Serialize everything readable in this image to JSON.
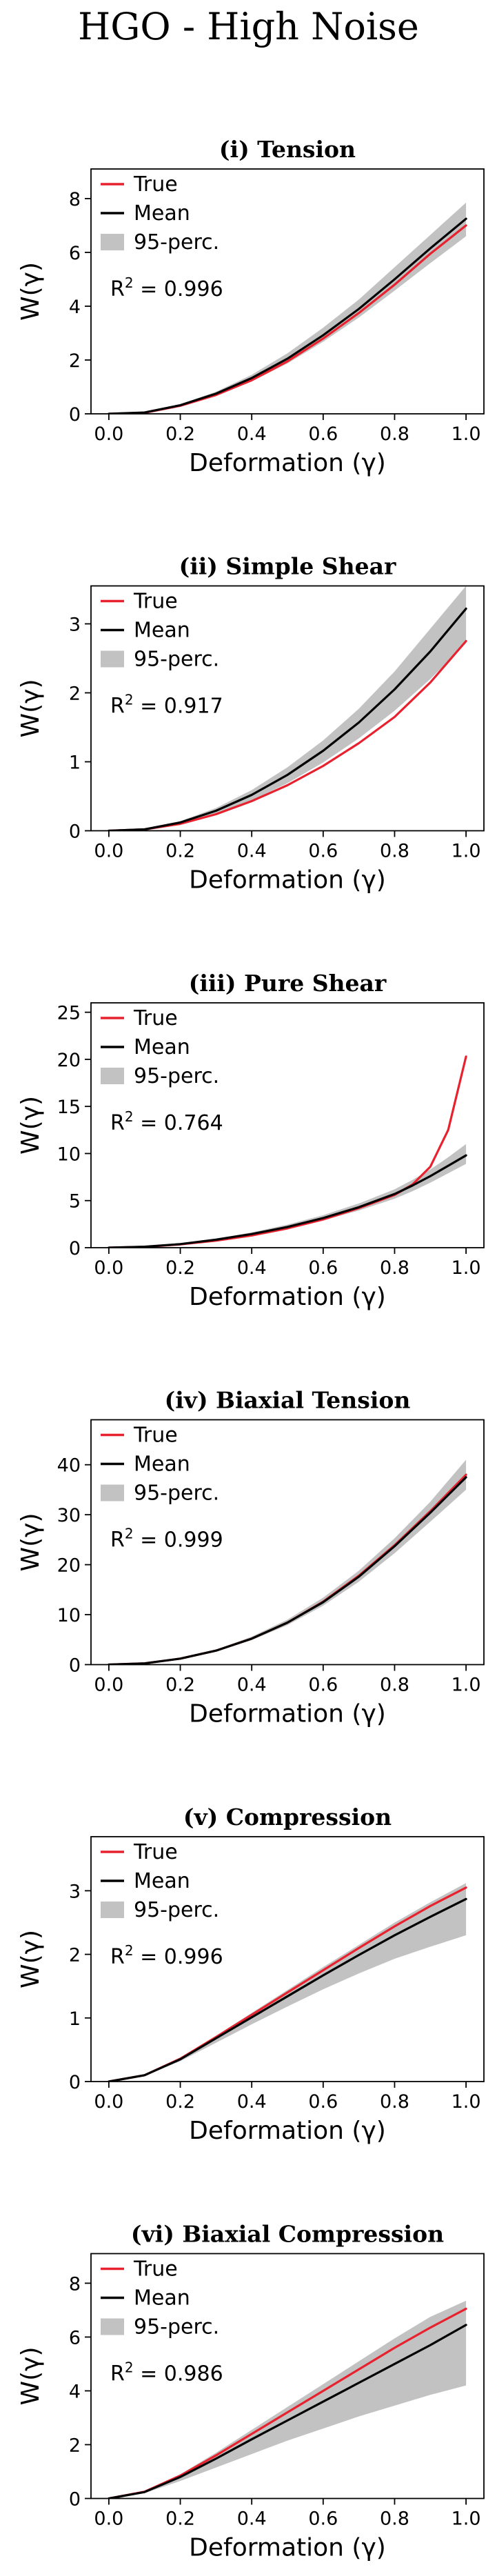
{
  "figure_title": "HGO - High Noise",
  "colors": {
    "true": "#e8212e",
    "mean": "#000000",
    "band": "#c2c2c2"
  },
  "chart_data": [
    {
      "type": "line",
      "title": "(i) Tension",
      "xlabel": "Deformation (γ)",
      "ylabel": "W(γ)",
      "xlim": [
        -0.05,
        1.05
      ],
      "ylim": [
        0,
        9.1
      ],
      "xticks": [
        0.0,
        0.2,
        0.4,
        0.6,
        0.8,
        1.0
      ],
      "xtick_labels": [
        "0.0",
        "0.2",
        "0.4",
        "0.6",
        "0.8",
        "1.0"
      ],
      "yticks": [
        0,
        2,
        4,
        6,
        8
      ],
      "ytick_labels": [
        "0",
        "2",
        "4",
        "6",
        "8"
      ],
      "legend": [
        "True",
        "Mean",
        "95-perc."
      ],
      "r2_label": "R",
      "r2_exp": "2",
      "r2_value": " = 0.996",
      "x": [
        0.0,
        0.1,
        0.2,
        0.3,
        0.4,
        0.5,
        0.6,
        0.7,
        0.8,
        0.9,
        1.0
      ],
      "series": [
        {
          "name": "True",
          "values": [
            0.0,
            0.04,
            0.3,
            0.7,
            1.25,
            1.95,
            2.8,
            3.75,
            4.8,
            5.95,
            7.0
          ]
        },
        {
          "name": "Mean",
          "values": [
            0.0,
            0.05,
            0.32,
            0.75,
            1.33,
            2.05,
            2.92,
            3.9,
            5.0,
            6.15,
            7.25
          ]
        }
      ],
      "band": {
        "name": "95-perc.",
        "lower": [
          0.0,
          0.04,
          0.28,
          0.68,
          1.2,
          1.87,
          2.68,
          3.58,
          4.58,
          5.6,
          6.6
        ],
        "upper": [
          0.0,
          0.06,
          0.36,
          0.82,
          1.45,
          2.25,
          3.2,
          4.25,
          5.45,
          6.65,
          7.85
        ]
      }
    },
    {
      "type": "line",
      "title": "(ii) Simple Shear",
      "xlabel": "Deformation (γ)",
      "ylabel": "W(γ)",
      "xlim": [
        -0.05,
        1.05
      ],
      "ylim": [
        0,
        3.55
      ],
      "xticks": [
        0.0,
        0.2,
        0.4,
        0.6,
        0.8,
        1.0
      ],
      "xtick_labels": [
        "0.0",
        "0.2",
        "0.4",
        "0.6",
        "0.8",
        "1.0"
      ],
      "yticks": [
        0,
        1,
        2,
        3
      ],
      "ytick_labels": [
        "0",
        "1",
        "2",
        "3"
      ],
      "legend": [
        "True",
        "Mean",
        "95-perc."
      ],
      "r2_label": "R",
      "r2_exp": "2",
      "r2_value": " = 0.917",
      "x": [
        0.0,
        0.1,
        0.2,
        0.3,
        0.4,
        0.5,
        0.6,
        0.7,
        0.8,
        0.9,
        1.0
      ],
      "series": [
        {
          "name": "True",
          "values": [
            0.0,
            0.02,
            0.1,
            0.24,
            0.43,
            0.66,
            0.94,
            1.27,
            1.65,
            2.15,
            2.75
          ]
        },
        {
          "name": "Mean",
          "values": [
            0.0,
            0.02,
            0.12,
            0.29,
            0.52,
            0.81,
            1.16,
            1.57,
            2.05,
            2.6,
            3.22
          ]
        }
      ],
      "band": {
        "name": "95-perc.",
        "lower": [
          0.0,
          0.02,
          0.1,
          0.24,
          0.44,
          0.69,
          0.99,
          1.34,
          1.74,
          2.2,
          2.72
        ],
        "upper": [
          0.0,
          0.03,
          0.14,
          0.33,
          0.59,
          0.92,
          1.31,
          1.77,
          2.31,
          2.93,
          3.55
        ]
      }
    },
    {
      "type": "line",
      "title": "(iii) Pure Shear",
      "xlabel": "Deformation (γ)",
      "ylabel": "W(γ)",
      "xlim": [
        -0.05,
        1.05
      ],
      "ylim": [
        0,
        26
      ],
      "xticks": [
        0.0,
        0.2,
        0.4,
        0.6,
        0.8,
        1.0
      ],
      "xtick_labels": [
        "0.0",
        "0.2",
        "0.4",
        "0.6",
        "0.8",
        "1.0"
      ],
      "yticks": [
        0,
        5,
        10,
        15,
        20,
        25
      ],
      "ytick_labels": [
        "0",
        "5",
        "10",
        "15",
        "20",
        "25"
      ],
      "legend": [
        "True",
        "Mean",
        "95-perc."
      ],
      "r2_label": "R",
      "r2_exp": "2",
      "r2_value": " = 0.764",
      "x": [
        0.0,
        0.1,
        0.2,
        0.3,
        0.4,
        0.5,
        0.6,
        0.7,
        0.8,
        0.85,
        0.9,
        0.95,
        1.0
      ],
      "series": [
        {
          "name": "True",
          "values": [
            0.0,
            0.08,
            0.35,
            0.75,
            1.3,
            2.05,
            3.0,
            4.2,
            5.6,
            6.7,
            8.6,
            12.5,
            20.3
          ]
        },
        {
          "name": "Mean",
          "values": [
            0.0,
            0.1,
            0.38,
            0.85,
            1.45,
            2.2,
            3.15,
            4.3,
            5.7,
            6.6,
            7.6,
            8.7,
            9.8
          ]
        }
      ],
      "band": {
        "name": "95-perc.",
        "lower": [
          0.0,
          0.08,
          0.33,
          0.75,
          1.3,
          2.0,
          2.9,
          3.95,
          5.2,
          6.0,
          6.9,
          7.9,
          8.9
        ],
        "upper": [
          0.0,
          0.12,
          0.43,
          0.95,
          1.62,
          2.45,
          3.45,
          4.7,
          6.2,
          7.2,
          8.3,
          9.6,
          11.0
        ]
      }
    },
    {
      "type": "line",
      "title": "(iv) Biaxial Tension",
      "xlabel": "Deformation (γ)",
      "ylabel": "W(γ)",
      "xlim": [
        -0.05,
        1.05
      ],
      "ylim": [
        0,
        49
      ],
      "xticks": [
        0.0,
        0.2,
        0.4,
        0.6,
        0.8,
        1.0
      ],
      "xtick_labels": [
        "0.0",
        "0.2",
        "0.4",
        "0.6",
        "0.8",
        "1.0"
      ],
      "yticks": [
        0,
        10,
        20,
        30,
        40
      ],
      "ytick_labels": [
        "0",
        "10",
        "20",
        "30",
        "40"
      ],
      "legend": [
        "True",
        "Mean",
        "95-perc."
      ],
      "r2_label": "R",
      "r2_exp": "2",
      "r2_value": " = 0.999",
      "x": [
        0.0,
        0.1,
        0.2,
        0.3,
        0.4,
        0.5,
        0.6,
        0.7,
        0.8,
        0.9,
        1.0
      ],
      "series": [
        {
          "name": "True",
          "values": [
            0.0,
            0.25,
            1.2,
            2.8,
            5.2,
            8.4,
            12.6,
            17.8,
            23.9,
            30.7,
            38.0
          ]
        },
        {
          "name": "Mean",
          "values": [
            0.0,
            0.25,
            1.2,
            2.8,
            5.2,
            8.4,
            12.5,
            17.6,
            23.7,
            30.4,
            37.5
          ]
        }
      ],
      "band": {
        "name": "95-perc.",
        "lower": [
          0.0,
          0.24,
          1.1,
          2.6,
          4.9,
          7.9,
          11.8,
          16.6,
          22.3,
          28.6,
          35.0
        ],
        "upper": [
          0.0,
          0.27,
          1.3,
          3.0,
          5.6,
          9.0,
          13.4,
          18.8,
          25.3,
          32.6,
          41.0
        ]
      }
    },
    {
      "type": "line",
      "title": "(v) Compression",
      "xlabel": "Deformation (γ)",
      "ylabel": "W(γ)",
      "xlim": [
        -0.05,
        1.05
      ],
      "ylim": [
        0,
        3.85
      ],
      "xticks": [
        0.0,
        0.2,
        0.4,
        0.6,
        0.8,
        1.0
      ],
      "xtick_labels": [
        "0.0",
        "0.2",
        "0.4",
        "0.6",
        "0.8",
        "1.0"
      ],
      "yticks": [
        0,
        1,
        2,
        3
      ],
      "ytick_labels": [
        "0",
        "1",
        "2",
        "3"
      ],
      "legend": [
        "True",
        "Mean",
        "95-perc."
      ],
      "r2_label": "R",
      "r2_exp": "2",
      "r2_value": " = 0.996",
      "x": [
        0.0,
        0.1,
        0.2,
        0.3,
        0.4,
        0.5,
        0.6,
        0.7,
        0.8,
        0.9,
        1.0
      ],
      "series": [
        {
          "name": "True",
          "values": [
            0.0,
            0.1,
            0.36,
            0.7,
            1.05,
            1.4,
            1.75,
            2.1,
            2.44,
            2.76,
            3.05
          ]
        },
        {
          "name": "Mean",
          "values": [
            0.0,
            0.1,
            0.35,
            0.68,
            1.01,
            1.34,
            1.67,
            1.99,
            2.3,
            2.59,
            2.87
          ]
        }
      ],
      "band": {
        "name": "95-perc.",
        "lower": [
          0.0,
          0.09,
          0.32,
          0.61,
          0.9,
          1.18,
          1.45,
          1.7,
          1.93,
          2.12,
          2.3
        ],
        "upper": [
          0.0,
          0.11,
          0.37,
          0.72,
          1.08,
          1.44,
          1.8,
          2.15,
          2.5,
          2.82,
          3.12
        ]
      }
    },
    {
      "type": "line",
      "title": "(vi) Biaxial Compression",
      "xlabel": "Deformation (γ)",
      "ylabel": "W(γ)",
      "xlim": [
        -0.05,
        1.05
      ],
      "ylim": [
        0,
        9.1
      ],
      "xticks": [
        0.0,
        0.2,
        0.4,
        0.6,
        0.8,
        1.0
      ],
      "xtick_labels": [
        "0.0",
        "0.2",
        "0.4",
        "0.6",
        "0.8",
        "1.0"
      ],
      "yticks": [
        0,
        2,
        4,
        6,
        8
      ],
      "ytick_labels": [
        "0",
        "2",
        "4",
        "6",
        "8"
      ],
      "legend": [
        "True",
        "Mean",
        "95-perc."
      ],
      "r2_label": "R",
      "r2_exp": "2",
      "r2_value": " = 0.986",
      "x": [
        0.0,
        0.1,
        0.2,
        0.3,
        0.4,
        0.5,
        0.6,
        0.7,
        0.8,
        0.9,
        1.0
      ],
      "series": [
        {
          "name": "True",
          "values": [
            0.0,
            0.25,
            0.85,
            1.6,
            2.4,
            3.2,
            4.0,
            4.8,
            5.6,
            6.35,
            7.05
          ]
        },
        {
          "name": "Mean",
          "values": [
            0.0,
            0.24,
            0.8,
            1.48,
            2.2,
            2.9,
            3.6,
            4.3,
            5.0,
            5.7,
            6.45
          ]
        }
      ],
      "band": {
        "name": "95-perc.",
        "lower": [
          0.0,
          0.2,
          0.65,
          1.15,
          1.65,
          2.15,
          2.6,
          3.05,
          3.45,
          3.85,
          4.2
        ],
        "upper": [
          0.0,
          0.28,
          0.9,
          1.7,
          2.55,
          3.4,
          4.25,
          5.1,
          5.95,
          6.75,
          7.35
        ]
      }
    }
  ]
}
